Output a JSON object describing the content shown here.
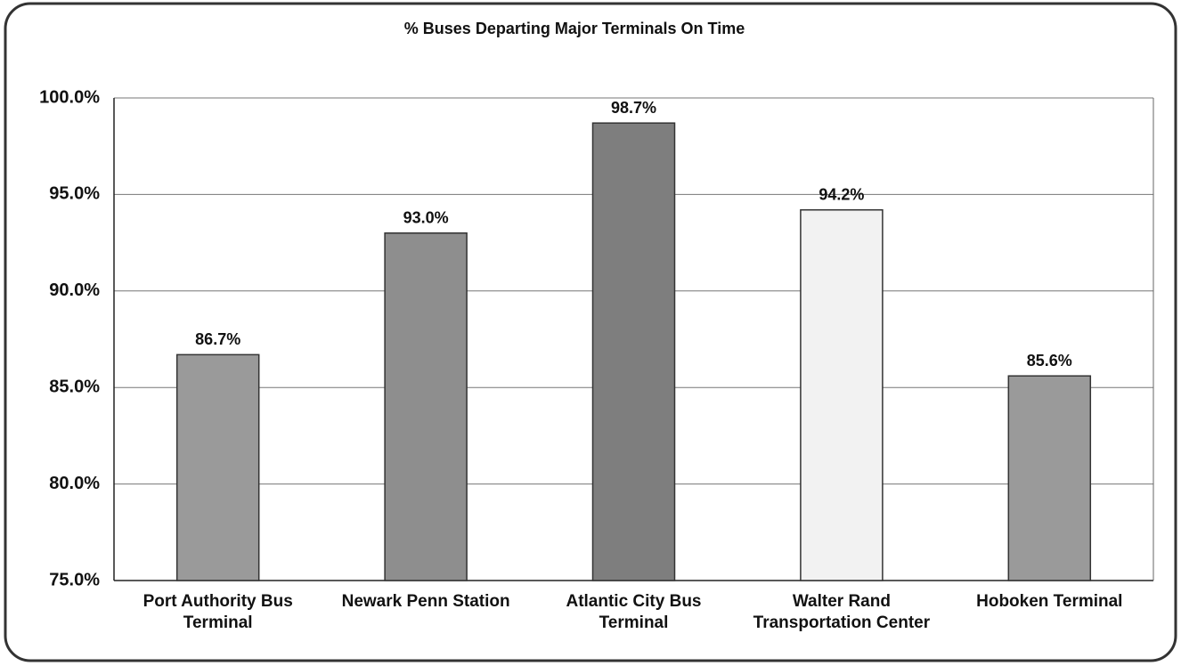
{
  "chart_data": {
    "type": "bar",
    "title": "% Buses Departing Major Terminals On Time",
    "categories": [
      "Port Authority Bus Terminal",
      "Newark Penn Station",
      "Atlantic City Bus Terminal",
      "Walter Rand Transportation Center",
      "Hoboken Terminal"
    ],
    "values": [
      86.7,
      93.0,
      98.7,
      94.2,
      85.6
    ],
    "value_labels": [
      "86.7%",
      "93.0%",
      "98.7%",
      "94.2%",
      "85.6%"
    ],
    "colors": [
      "#9a9a9a",
      "#8e8e8e",
      "#7e7e7e",
      "#f2f2f2",
      "#9a9a9a"
    ],
    "ylim": [
      75,
      100
    ],
    "yticks": [
      {
        "value": 75,
        "label": "75.0%"
      },
      {
        "value": 80,
        "label": "80.0%"
      },
      {
        "value": 85,
        "label": "85.0%"
      },
      {
        "value": 90,
        "label": "90.0%"
      },
      {
        "value": 95,
        "label": "95.0%"
      },
      {
        "value": 100,
        "label": "100.0%"
      }
    ],
    "grid": true
  }
}
